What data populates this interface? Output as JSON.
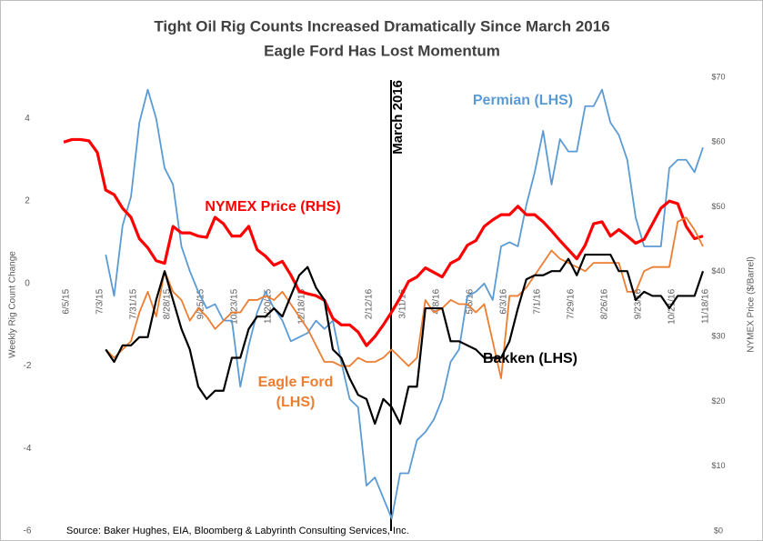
{
  "chart_data": {
    "type": "line",
    "title": "Tight Oil Rig Counts Increased Dramatically Since March 2016",
    "subtitle": "Eagle Ford Has Lost Momentum",
    "y_label": "Weekly Rig Count  Change",
    "y2_label": "NYMEX Price ($/Barrel)",
    "source": "Source: Baker Hughes, EIA, Bloomberg & Labyrinth Consulting Services, Inc.",
    "annotation": {
      "x": "3/11/16",
      "label": "March 2016"
    },
    "ylim": [
      -6,
      5
    ],
    "yticks": [
      -6,
      -4,
      -2,
      0,
      2,
      4
    ],
    "y2lim": [
      0,
      70
    ],
    "y2ticks": [
      {
        "value": 0,
        "label": "$0"
      },
      {
        "value": 10,
        "label": "$10"
      },
      {
        "value": 20,
        "label": "$20"
      },
      {
        "value": 30,
        "label": "$30"
      },
      {
        "value": 40,
        "label": "$40"
      },
      {
        "value": 50,
        "label": "$50"
      },
      {
        "value": 60,
        "label": "$60"
      },
      {
        "value": 70,
        "label": "$70"
      }
    ],
    "grid": false,
    "categories": [
      "6/5/15",
      null,
      null,
      null,
      "7/3/15",
      null,
      null,
      null,
      "7/31/15",
      null,
      null,
      null,
      "8/28/15",
      null,
      null,
      null,
      "9/25/15",
      null,
      null,
      null,
      "10/23/15",
      null,
      null,
      null,
      "11/20/15",
      null,
      null,
      null,
      "12/18/15",
      null,
      null,
      null,
      null,
      null,
      null,
      null,
      "2/12/16",
      null,
      null,
      null,
      "3/11/16",
      null,
      null,
      null,
      "4/8/16",
      null,
      null,
      null,
      "5/6/16",
      null,
      null,
      null,
      "6/3/16",
      null,
      null,
      null,
      "7/1/16",
      null,
      null,
      null,
      "7/29/16",
      null,
      null,
      null,
      "8/26/16",
      null,
      null,
      null,
      "9/23/16",
      null,
      null,
      null,
      "10/21/16",
      null,
      null,
      null,
      "11/18/16"
    ],
    "series": [
      {
        "name": "Permian (LHS)",
        "color": "#5b9bd5",
        "width": 1.8,
        "values": [
          null,
          null,
          null,
          null,
          null,
          0.7,
          -0.3,
          1.4,
          2.1,
          3.9,
          4.7,
          4.0,
          2.8,
          2.4,
          0.9,
          0.3,
          -0.2,
          -0.6,
          -0.5,
          -0.9,
          -0.9,
          -2.5,
          -1.5,
          -0.7,
          -0.2,
          -0.6,
          -0.9,
          -1.4,
          -1.3,
          -1.2,
          -0.9,
          -1.1,
          -0.9,
          -1.9,
          -2.8,
          -3.0,
          -4.9,
          -4.7,
          -5.2,
          -5.7,
          -4.6,
          -4.6,
          -3.8,
          -3.6,
          -3.3,
          -2.8,
          -1.9,
          -1.6,
          -0.3,
          -0.2,
          0.0,
          -0.4,
          0.9,
          1.0,
          0.9,
          1.9,
          2.7,
          3.7,
          2.4,
          3.5,
          3.2,
          3.2,
          4.3,
          4.3,
          4.7,
          3.9,
          3.6,
          3.0,
          1.6,
          0.9,
          0.9,
          0.9,
          2.8,
          3.0,
          3.0,
          2.7,
          3.3
        ]
      },
      {
        "name": "NYMEX Price (RHS)",
        "color": "#ff0000",
        "width": 3.2,
        "axis": "y2",
        "values": [
          60,
          60.4,
          60.4,
          60.2,
          58.4,
          52.6,
          51.9,
          49.8,
          48.4,
          45.1,
          43.7,
          41.7,
          41.3,
          47,
          46,
          46,
          45.5,
          45.3,
          48.4,
          47.4,
          45.5,
          45.5,
          47,
          43.4,
          42.4,
          41,
          41.6,
          39.5,
          37,
          36.6,
          36.3,
          35.6,
          32.8,
          31.8,
          31.8,
          30.7,
          28.6,
          30,
          31.8,
          33.8,
          36,
          38.5,
          39.2,
          40.6,
          39.9,
          39.2,
          41.3,
          42,
          44.1,
          44.8,
          47,
          48,
          48.8,
          48.8,
          50.1,
          48.8,
          48.8,
          47.7,
          46.3,
          44.8,
          43.4,
          42,
          44.1,
          47.4,
          47.7,
          45.5,
          46.5,
          45.5,
          44.4,
          45,
          47.4,
          49.8,
          50.9,
          50.5,
          47,
          45.1,
          45.5
        ]
      },
      {
        "name": "Eagle Ford (LHS)",
        "color": "#ed7d31",
        "width": 1.8,
        "values": [
          null,
          null,
          null,
          null,
          null,
          -1.6,
          -1.8,
          -1.6,
          -1.4,
          -0.7,
          -0.2,
          -0.8,
          0.3,
          -0.2,
          -0.4,
          -0.9,
          -0.6,
          -0.8,
          -1.1,
          -0.9,
          -0.7,
          -0.7,
          -0.4,
          -0.4,
          -0.3,
          -0.4,
          -0.2,
          -0.5,
          -0.8,
          -1.1,
          -1.5,
          -1.9,
          -1.9,
          -2.0,
          -2.0,
          -1.8,
          -1.9,
          -1.9,
          -1.8,
          -1.6,
          -1.8,
          -2.0,
          -1.8,
          -0.4,
          -0.7,
          -0.6,
          -0.4,
          -0.5,
          -0.5,
          -0.7,
          -0.5,
          -1.4,
          -2.3,
          -0.3,
          -0.3,
          -0.1,
          0.2,
          0.5,
          0.8,
          0.6,
          0.5,
          0.4,
          0.3,
          0.5,
          0.5,
          0.5,
          0.5,
          -0.2,
          -0.2,
          0.3,
          0.4,
          0.4,
          0.4,
          1.5,
          1.6,
          1.3,
          0.9
        ]
      },
      {
        "name": "Bakken (LHS)",
        "color": "#000000",
        "width": 2.2,
        "values": [
          null,
          null,
          null,
          null,
          null,
          -1.6,
          -1.9,
          -1.5,
          -1.5,
          -1.3,
          -1.3,
          -0.4,
          0.3,
          -0.4,
          -1.1,
          -1.6,
          -2.5,
          -2.8,
          -2.6,
          -2.6,
          -1.8,
          -1.8,
          -1.1,
          -0.8,
          -0.8,
          -0.6,
          -0.8,
          -0.3,
          0.2,
          0.4,
          -0.1,
          -0.4,
          -1.6,
          -1.8,
          -2.3,
          -2.7,
          -2.8,
          -3.4,
          -2.8,
          -3.0,
          -3.4,
          -2.5,
          -2.5,
          -0.6,
          -0.6,
          -0.6,
          -1.4,
          -1.4,
          -1.5,
          -1.6,
          -1.8,
          -1.8,
          -1.8,
          -1.4,
          -0.6,
          0.1,
          0.2,
          0.2,
          0.3,
          0.3,
          0.6,
          0.2,
          0.7,
          0.7,
          0.7,
          0.7,
          0.3,
          0.3,
          -0.4,
          -0.2,
          -0.3,
          -0.3,
          -0.6,
          -0.3,
          -0.3,
          -0.3,
          0.3
        ]
      }
    ]
  }
}
